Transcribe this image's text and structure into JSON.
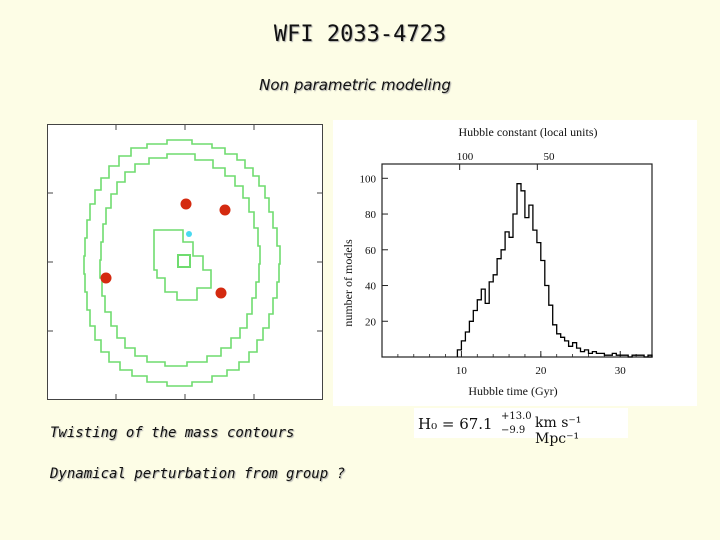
{
  "slide": {
    "title": "WFI 2033-4723",
    "subtitle": "Non parametric modeling",
    "captions": [
      "Twisting of the mass contours",
      "Dynamical perturbation from group ?"
    ]
  },
  "colors": {
    "background": "#fdfde6",
    "contour": "#6fdc6f",
    "image_points": "#d42a10",
    "source_point": "#49d9f0",
    "histogram": "#000000"
  },
  "mass_map": {
    "description_label": "Mass contours",
    "image_count": 4,
    "source_count": 1
  },
  "histogram": {
    "top_axis_label": "Hubble constant (local units)",
    "top_ticks": [
      "100",
      "50"
    ],
    "bottom_axis_label": "Hubble time (Gyr)",
    "bottom_ticks": [
      "10",
      "20",
      "30"
    ],
    "y_axis_label": "number of models",
    "y_ticks": [
      "20",
      "40",
      "60",
      "80",
      "100"
    ]
  },
  "chart_data": {
    "type": "bar",
    "title": "Hubble constant (local units)",
    "xlabel": "Hubble time (Gyr)",
    "ylabel": "number of models",
    "xlim": [
      0,
      34
    ],
    "ylim": [
      0,
      108
    ],
    "bin_width": 0.5,
    "bin_edges_start": 9.5,
    "counts": [
      4,
      9,
      14,
      20,
      26,
      32,
      38,
      30,
      42,
      46,
      55,
      60,
      70,
      67,
      80,
      97,
      93,
      78,
      85,
      71,
      64,
      54,
      40,
      29,
      18,
      13,
      11,
      9,
      6,
      8,
      5,
      3,
      4,
      2,
      3,
      2,
      2,
      1,
      1,
      2,
      1,
      1,
      1,
      0,
      1,
      1,
      1,
      0,
      1
    ]
  },
  "formula": {
    "lhs": "H₀ = 67.1",
    "sup": "+13.0",
    "sub": "−9.9",
    "units": "km s⁻¹ Mpc⁻¹"
  }
}
